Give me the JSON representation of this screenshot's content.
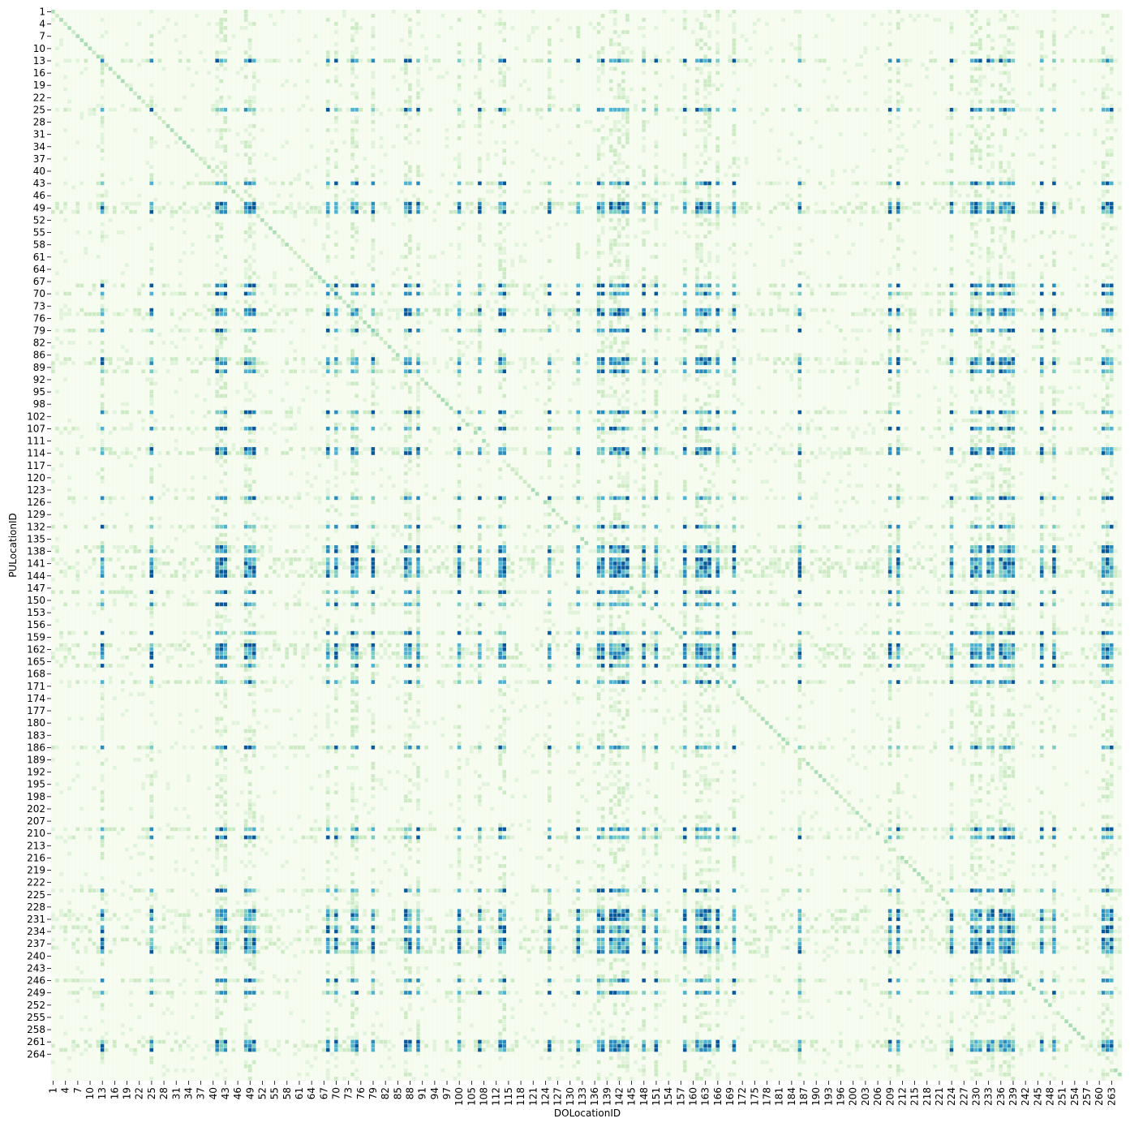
{
  "chart_data": {
    "type": "heatmap",
    "xlabel": "DOLocationID",
    "ylabel": "PULocationID",
    "y_ticks": [
      "1",
      "4",
      "7",
      "10",
      "13",
      "16",
      "19",
      "22",
      "25",
      "28",
      "31",
      "34",
      "37",
      "40",
      "43",
      "46",
      "49",
      "52",
      "55",
      "58",
      "61",
      "64",
      "67",
      "70",
      "73",
      "76",
      "79",
      "82",
      "86",
      "89",
      "92",
      "95",
      "98",
      "102",
      "107",
      "111",
      "114",
      "117",
      "120",
      "123",
      "126",
      "129",
      "132",
      "135",
      "138",
      "141",
      "144",
      "147",
      "150",
      "153",
      "156",
      "159",
      "162",
      "165",
      "168",
      "171",
      "174",
      "177",
      "180",
      "183",
      "186",
      "189",
      "192",
      "195",
      "198",
      "202",
      "207",
      "210",
      "213",
      "216",
      "219",
      "222",
      "225",
      "228",
      "231",
      "234",
      "237",
      "240",
      "243",
      "246",
      "249",
      "252",
      "255",
      "258",
      "261",
      "264"
    ],
    "x_ticks": [
      "1",
      "4",
      "7",
      "10",
      "13",
      "16",
      "19",
      "22",
      "25",
      "28",
      "31",
      "34",
      "37",
      "40",
      "43",
      "46",
      "49",
      "52",
      "55",
      "58",
      "61",
      "64",
      "67",
      "70",
      "73",
      "76",
      "79",
      "82",
      "85",
      "88",
      "91",
      "94",
      "97",
      "100",
      "105",
      "108",
      "112",
      "115",
      "118",
      "121",
      "124",
      "127",
      "130",
      "133",
      "136",
      "139",
      "142",
      "145",
      "148",
      "151",
      "154",
      "157",
      "160",
      "163",
      "166",
      "169",
      "172",
      "175",
      "178",
      "181",
      "184",
      "187",
      "190",
      "193",
      "196",
      "200",
      "203",
      "206",
      "209",
      "212",
      "215",
      "218",
      "221",
      "224",
      "227",
      "230",
      "233",
      "236",
      "239",
      "242",
      "245",
      "248",
      "251",
      "254",
      "257",
      "260",
      "263"
    ],
    "rows": 262,
    "cols": 261,
    "colormap": [
      "#f7fcf0",
      "#e0f3db",
      "#ccebc5",
      "#a8ddb5",
      "#7bccc4",
      "#4eb3d3",
      "#2b8cbe",
      "#08589e"
    ],
    "grid_color": "#eef7e8",
    "hot_pickup_ids": [
      "13",
      "25",
      "43",
      "48",
      "49",
      "50",
      "68",
      "70",
      "74",
      "75",
      "79",
      "87",
      "88",
      "90",
      "100",
      "107",
      "113",
      "114",
      "125",
      "132",
      "137",
      "138",
      "140",
      "141",
      "142",
      "143",
      "144",
      "148",
      "151",
      "158",
      "161",
      "162",
      "163",
      "164",
      "166",
      "170",
      "186",
      "209",
      "211",
      "224",
      "229",
      "230",
      "231",
      "233",
      "234",
      "236",
      "237",
      "238",
      "239",
      "246",
      "249",
      "261",
      "262",
      "263"
    ],
    "hot_dropoff_ids": [
      "13",
      "25",
      "41",
      "42",
      "43",
      "48",
      "49",
      "50",
      "68",
      "70",
      "74",
      "75",
      "79",
      "87",
      "88",
      "90",
      "100",
      "107",
      "113",
      "114",
      "125",
      "132",
      "137",
      "138",
      "140",
      "141",
      "142",
      "143",
      "144",
      "148",
      "151",
      "158",
      "161",
      "162",
      "163",
      "164",
      "166",
      "170",
      "186",
      "209",
      "211",
      "224",
      "229",
      "230",
      "231",
      "233",
      "234",
      "236",
      "237",
      "238",
      "239",
      "246",
      "249",
      "261",
      "262",
      "263"
    ]
  }
}
